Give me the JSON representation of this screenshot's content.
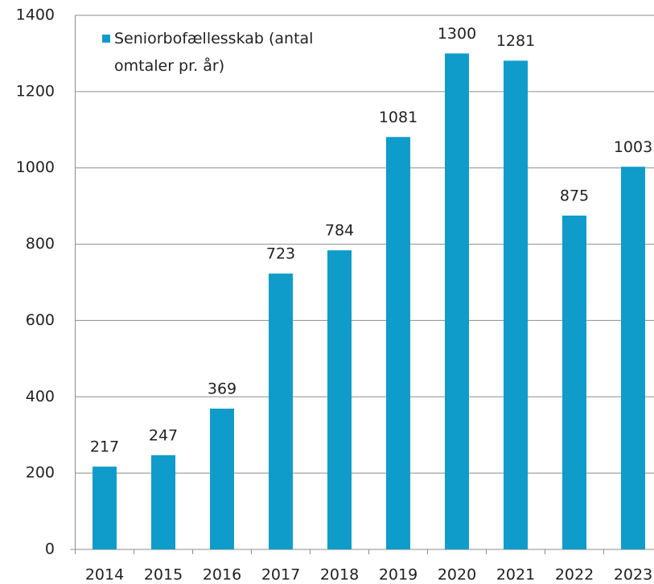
{
  "chart_data": {
    "type": "bar",
    "categories": [
      "2014",
      "2015",
      "2016",
      "2017",
      "2018",
      "2019",
      "2020",
      "2021",
      "2022",
      "2023"
    ],
    "series": [
      {
        "name": "Seniorbofællesskab (antal omtaler pr. år)",
        "color": "#0f9cca",
        "values": [
          217,
          247,
          369,
          723,
          784,
          1081,
          1300,
          1281,
          875,
          1003
        ]
      }
    ],
    "ylim": [
      0,
      1400
    ],
    "yticks": [
      0,
      200,
      400,
      600,
      800,
      1000,
      1200,
      1400
    ],
    "grid": true,
    "legend": "top-left"
  }
}
